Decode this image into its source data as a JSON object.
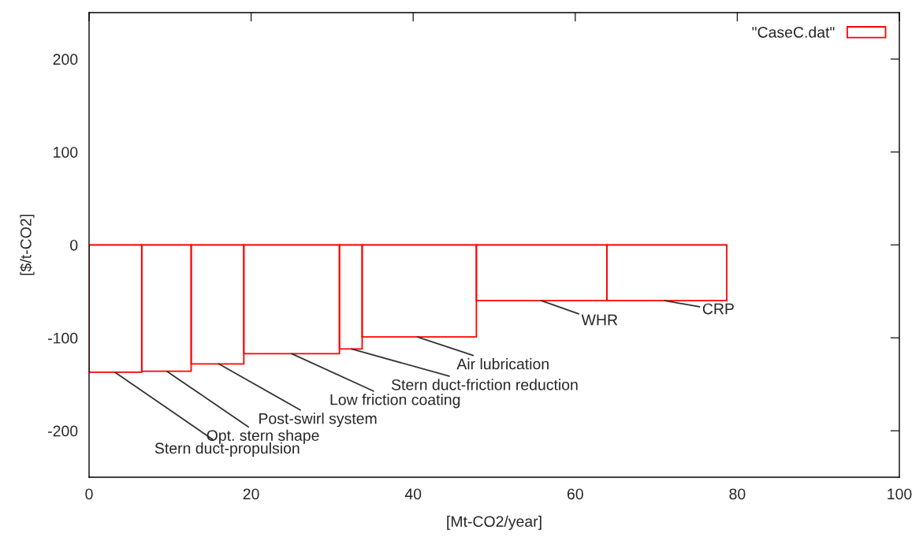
{
  "chart_data": {
    "type": "histogram",
    "bins": [
      0,
      6.5,
      12.6,
      19.1,
      30.9,
      33.7,
      47.8,
      63.9,
      78.7
    ],
    "series": [
      {
        "name": "\"CaseC.dat\"",
        "color": "#ff0000",
        "values": [
          -137,
          -136,
          -128,
          -117,
          -112,
          -99,
          -60,
          -60
        ]
      }
    ],
    "xlabel": "[Mt-CO2/year]",
    "ylabel": "[$/t-CO2]",
    "xlim": [
      0,
      100
    ],
    "xticks": [
      0,
      20,
      40,
      60,
      80,
      100
    ],
    "ylim": [
      -250,
      250
    ],
    "yticks": [
      -200,
      -100,
      0,
      100,
      200
    ],
    "grid": false,
    "legend": "top right",
    "annotations": [
      {
        "text": "Stern duct-propulsion",
        "x": 3.2,
        "y": -137
      },
      {
        "text": "Opt. stern shape",
        "x": 9.6,
        "y": -136
      },
      {
        "text": "Post-swirl system",
        "x": 16,
        "y": -128
      },
      {
        "text": "Low friction coating",
        "x": 25,
        "y": -117
      },
      {
        "text": "Stern duct-friction reduction",
        "x": 32.4,
        "y": -112
      },
      {
        "text": "Air lubrication",
        "x": 40.5,
        "y": -99
      },
      {
        "text": "WHR",
        "x": 55.8,
        "y": -60
      },
      {
        "text": "CRP",
        "x": 71,
        "y": -60
      }
    ]
  }
}
